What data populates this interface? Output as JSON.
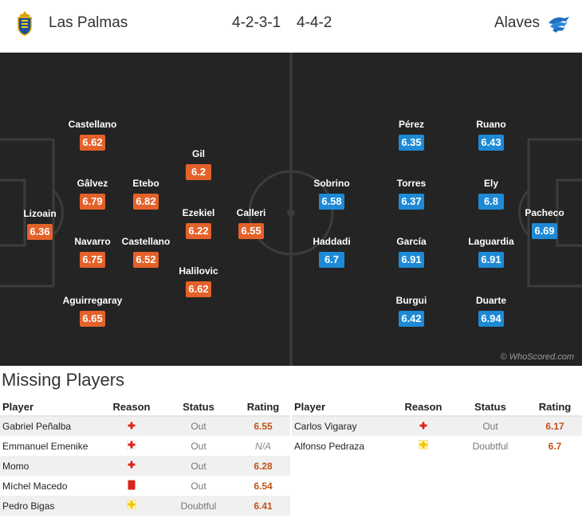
{
  "header": {
    "home_team": "Las Palmas",
    "home_formation": "4-2-3-1",
    "away_formation": "4-4-2",
    "away_team": "Alaves",
    "home_logo_icon": "las-palmas-crest-icon",
    "away_logo_icon": "alaves-crest-icon"
  },
  "colors": {
    "home": "#e4622a",
    "away": "#1e8ad6",
    "pitch": "#242424",
    "rating_text": "#c0531b"
  },
  "home_players": [
    {
      "name": "Castellano",
      "rating": "6.62"
    },
    {
      "name": "Gil",
      "rating": "6.2"
    },
    {
      "name": "Gâlvez",
      "rating": "6.79"
    },
    {
      "name": "Etebo",
      "rating": "6.82"
    },
    {
      "name": "Lizoain",
      "rating": "6.36"
    },
    {
      "name": "Ezekiel",
      "rating": "6.22"
    },
    {
      "name": "Calleri",
      "rating": "6.55"
    },
    {
      "name": "Navarro",
      "rating": "6.75"
    },
    {
      "name": "Castellano",
      "rating": "6.52"
    },
    {
      "name": "Halilovic",
      "rating": "6.62"
    },
    {
      "name": "Aguirregaray",
      "rating": "6.65"
    }
  ],
  "away_players": [
    {
      "name": "Pérez",
      "rating": "6.35"
    },
    {
      "name": "Ruano",
      "rating": "6.43"
    },
    {
      "name": "Sobrino",
      "rating": "6.58"
    },
    {
      "name": "Torres",
      "rating": "6.37"
    },
    {
      "name": "Ely",
      "rating": "6.8"
    },
    {
      "name": "Pacheco",
      "rating": "6.69"
    },
    {
      "name": "Haddadi",
      "rating": "6.7"
    },
    {
      "name": "García",
      "rating": "6.91"
    },
    {
      "name": "Laguardia",
      "rating": "6.91"
    },
    {
      "name": "Burgui",
      "rating": "6.42"
    },
    {
      "name": "Duarte",
      "rating": "6.94"
    }
  ],
  "watermark": "© WhoScored.com",
  "missing": {
    "title": "Missing Players",
    "headers": {
      "player": "Player",
      "reason": "Reason",
      "status": "Status",
      "rating": "Rating"
    },
    "home": [
      {
        "player": "Gabriel Peñalba",
        "reason": "injury-icon",
        "status": "Out",
        "rating": "6.55"
      },
      {
        "player": "Emmanuel Emenike",
        "reason": "injury-icon",
        "status": "Out",
        "rating": "N/A"
      },
      {
        "player": "Momo",
        "reason": "injury-icon",
        "status": "Out",
        "rating": "6.28"
      },
      {
        "player": "Míchel Macedo",
        "reason": "red-card-icon",
        "status": "Out",
        "rating": "6.54"
      },
      {
        "player": "Pedro Bigas",
        "reason": "doubtful-icon",
        "status": "Doubtful",
        "rating": "6.41"
      }
    ],
    "away": [
      {
        "player": "Carlos Vigaray",
        "reason": "injury-icon",
        "status": "Out",
        "rating": "6.17"
      },
      {
        "player": "Alfonso Pedraza",
        "reason": "doubtful-icon",
        "status": "Doubtful",
        "rating": "6.7"
      }
    ]
  }
}
